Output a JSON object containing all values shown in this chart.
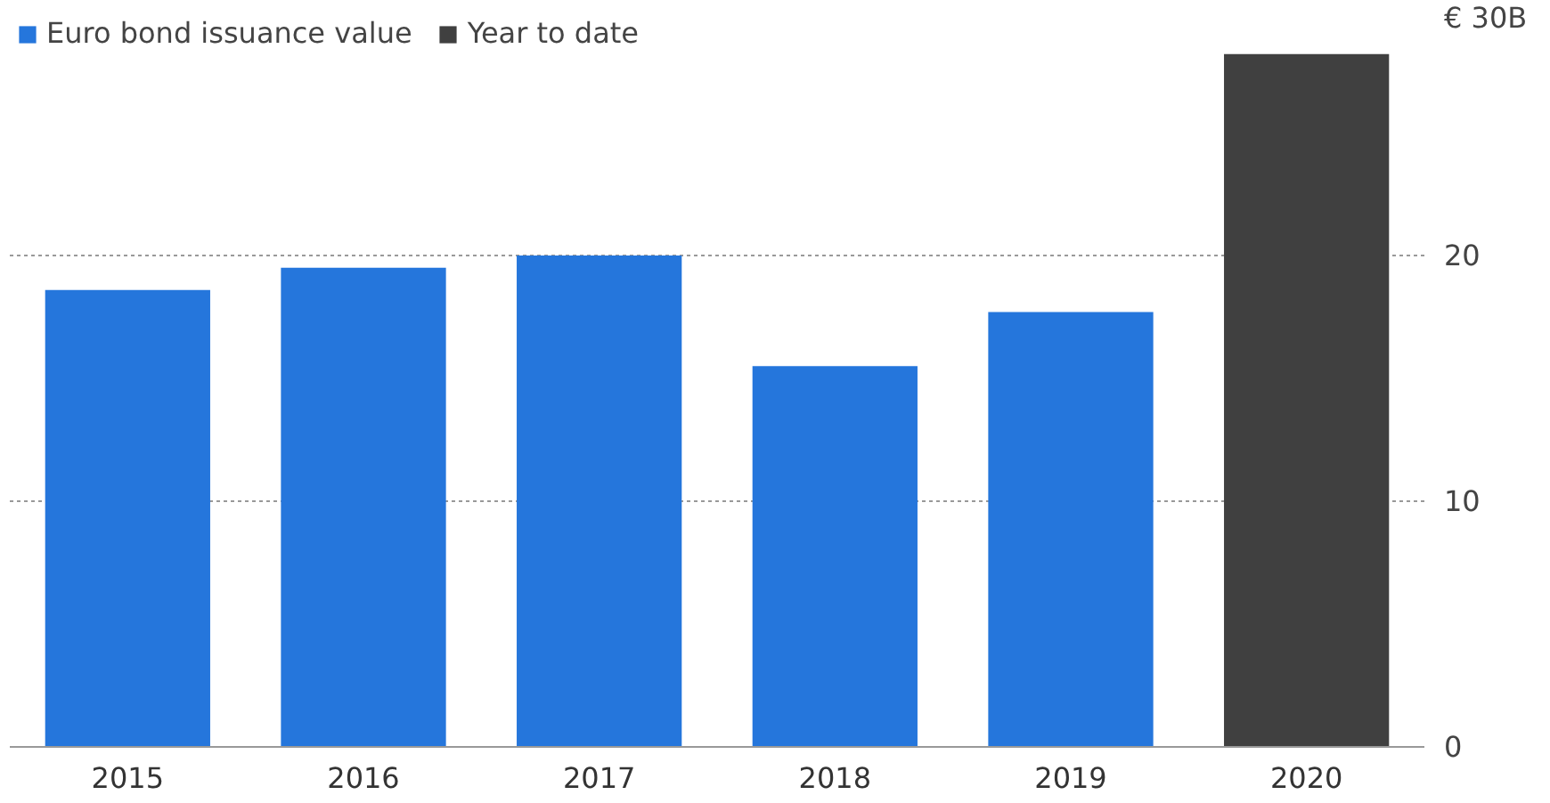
{
  "chart_data": {
    "type": "bar",
    "categories": [
      "2015",
      "2016",
      "2017",
      "2018",
      "2019",
      "2020"
    ],
    "series": [
      {
        "name": "Euro bond issuance value",
        "color": "#2576dc",
        "values": [
          18.6,
          19.5,
          20.0,
          15.5,
          17.7,
          null
        ]
      },
      {
        "name": "Year to date",
        "color": "#404040",
        "values": [
          null,
          null,
          null,
          null,
          null,
          28.2
        ]
      }
    ],
    "ylim": [
      0,
      30
    ],
    "yticks": [
      0,
      10,
      20,
      {
        "value": 30,
        "label": "€ 30B"
      }
    ],
    "grid": "y",
    "legend": "top left"
  }
}
